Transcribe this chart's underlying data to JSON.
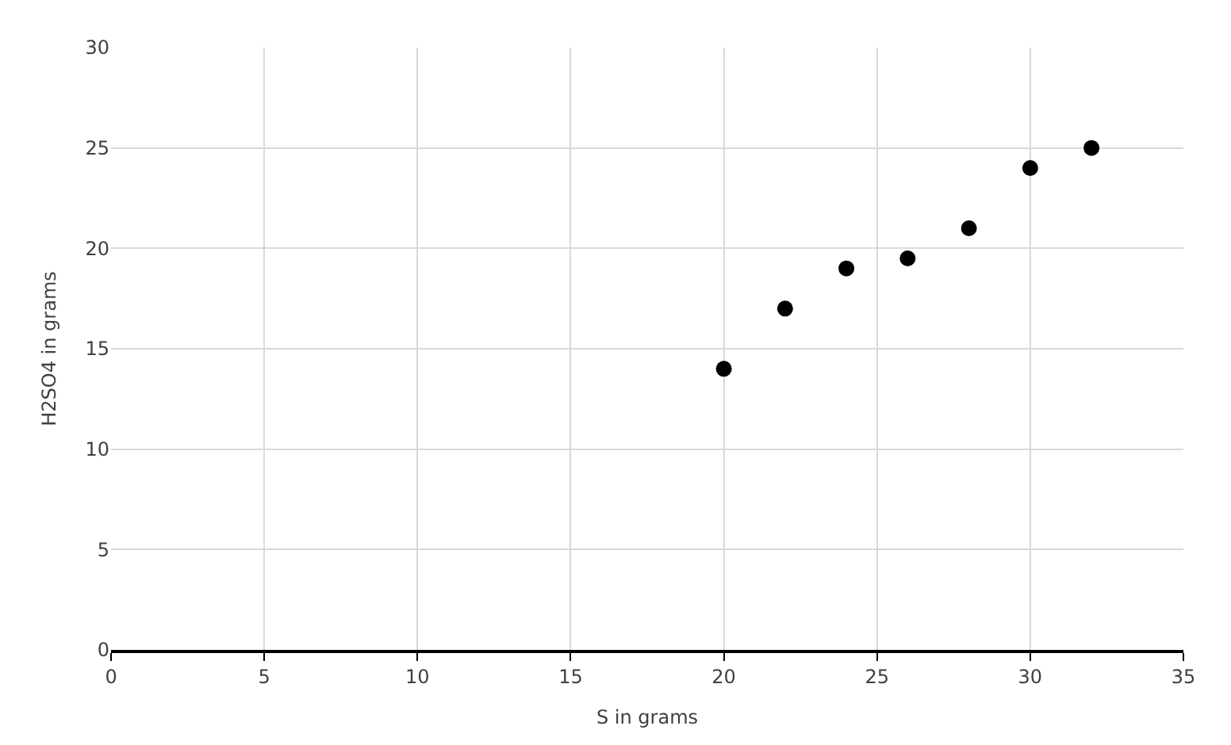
{
  "chart_data": {
    "type": "scatter",
    "xlabel": "S in grams",
    "ylabel": "H2SO4 in grams",
    "x": [
      20,
      22,
      24,
      26,
      28,
      30,
      32
    ],
    "series": [
      {
        "color": "#000000",
        "values": [
          14,
          17,
          19,
          19.5,
          21,
          24,
          25
        ]
      }
    ],
    "xlim": [
      0,
      35
    ],
    "xticks": [
      0,
      5,
      10,
      15,
      20,
      25,
      30,
      35
    ],
    "ylim": [
      0,
      30
    ],
    "yticks": [
      0,
      5,
      10,
      15,
      20,
      25,
      30
    ],
    "grid": true,
    "marker": "circle"
  }
}
